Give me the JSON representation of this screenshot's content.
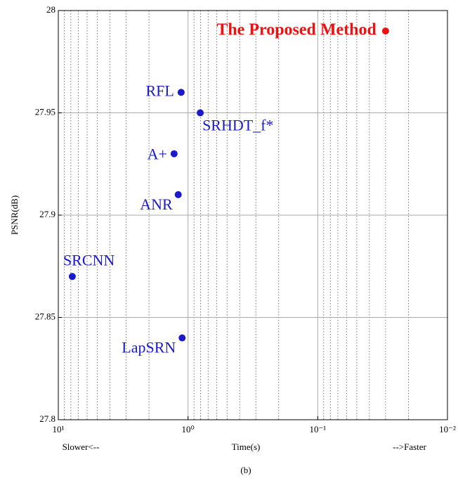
{
  "chart_data": {
    "type": "scatter",
    "ylabel": "PSNR(dB)",
    "xlabel": "Time(s)",
    "annotations": [
      "Slower<--",
      "-->Faster",
      "(b)"
    ],
    "labels": [
      "The Proposed Method",
      "RFL",
      "SRHDT_f*",
      "A+",
      "ANR",
      "SRCNN",
      "LapSRN"
    ],
    "x": [
      0.03,
      1.13,
      0.805,
      1.28,
      1.19,
      7.8,
      1.11
    ],
    "values": [
      27.99,
      27.96,
      27.95,
      27.93,
      27.91,
      27.87,
      27.84
    ],
    "colors": [
      "#ee1111",
      "#1a1acc",
      "#1a1acc",
      "#1a1acc",
      "#1a1acc",
      "#1a1acc",
      "#1a1acc"
    ],
    "xscale": "log",
    "xlim": [
      10,
      0.01
    ],
    "xticks": [
      {
        "value": 10,
        "label": "10¹"
      },
      {
        "value": 1,
        "label": "10⁰"
      },
      {
        "value": 0.1,
        "label": "10⁻¹"
      },
      {
        "value": 0.01,
        "label": "10⁻²"
      }
    ],
    "ylim": [
      27.8,
      28
    ],
    "yticks": [
      27.8,
      27.85,
      27.9,
      27.95,
      28
    ],
    "grid": true
  }
}
